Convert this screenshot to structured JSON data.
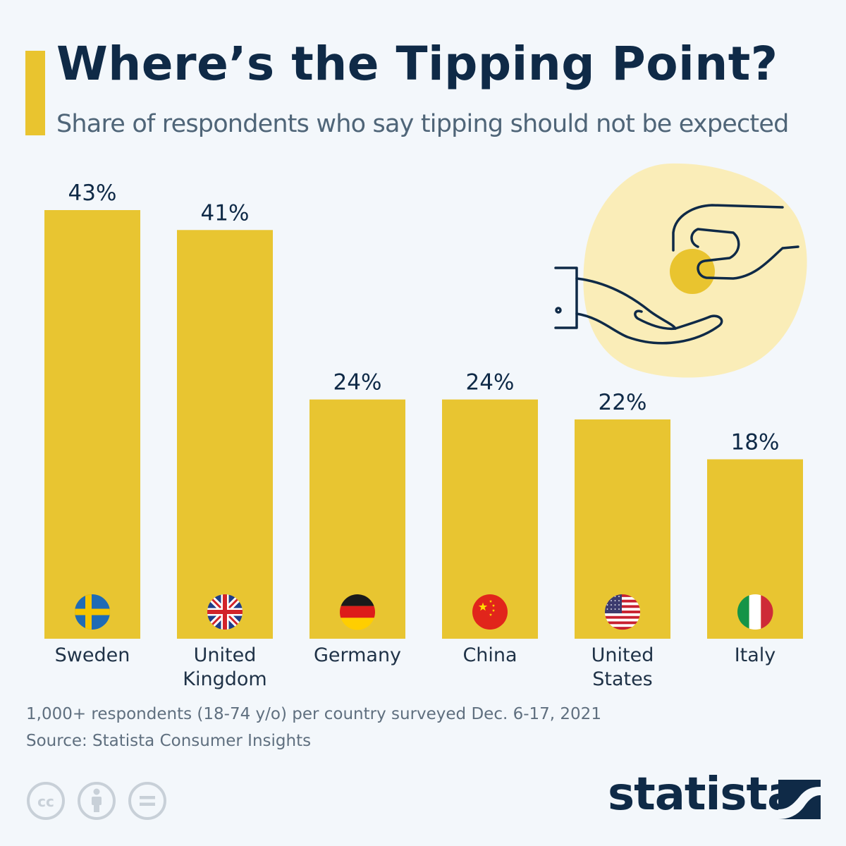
{
  "header": {
    "title": "Where’s the Tipping Point?",
    "subtitle": "Share of respondents who say tipping should not be expected"
  },
  "colors": {
    "accent": "#e9c42f",
    "bar": "#e8c531",
    "navy": "#0f2a47",
    "background": "#f3f7fb",
    "blob": "#faedb8"
  },
  "chart_data": {
    "type": "bar",
    "title": "Where’s the Tipping Point?",
    "subtitle": "Share of respondents who say tipping should not be expected",
    "categories": [
      "Sweden",
      "United Kingdom",
      "Germany",
      "China",
      "United States",
      "Italy"
    ],
    "category_lines": [
      [
        "Sweden"
      ],
      [
        "United",
        "Kingdom"
      ],
      [
        "Germany"
      ],
      [
        "China"
      ],
      [
        "United",
        "States"
      ],
      [
        "Italy"
      ]
    ],
    "values": [
      43,
      41,
      24,
      24,
      22,
      18
    ],
    "value_labels": [
      "43%",
      "41%",
      "24%",
      "24%",
      "22%",
      "18%"
    ],
    "flags": [
      "sweden-flag-icon",
      "united-kingdom-flag-icon",
      "germany-flag-icon",
      "china-flag-icon",
      "united-states-flag-icon",
      "italy-flag-icon"
    ],
    "unit": "%",
    "xlabel": "",
    "ylabel": "",
    "ylim": [
      0,
      43
    ],
    "grid": false,
    "legend": "none"
  },
  "footer": {
    "note": "1,000+ respondents (18-74 y/o) per country surveyed Dec. 6-17, 2021",
    "source": "Source: Statista Consumer Insights",
    "license_icons": [
      "cc-icon",
      "attribution-icon",
      "no-derivatives-icon"
    ],
    "logo": "statista"
  },
  "illustration": {
    "icon": "hand-giving-coin-icon"
  }
}
